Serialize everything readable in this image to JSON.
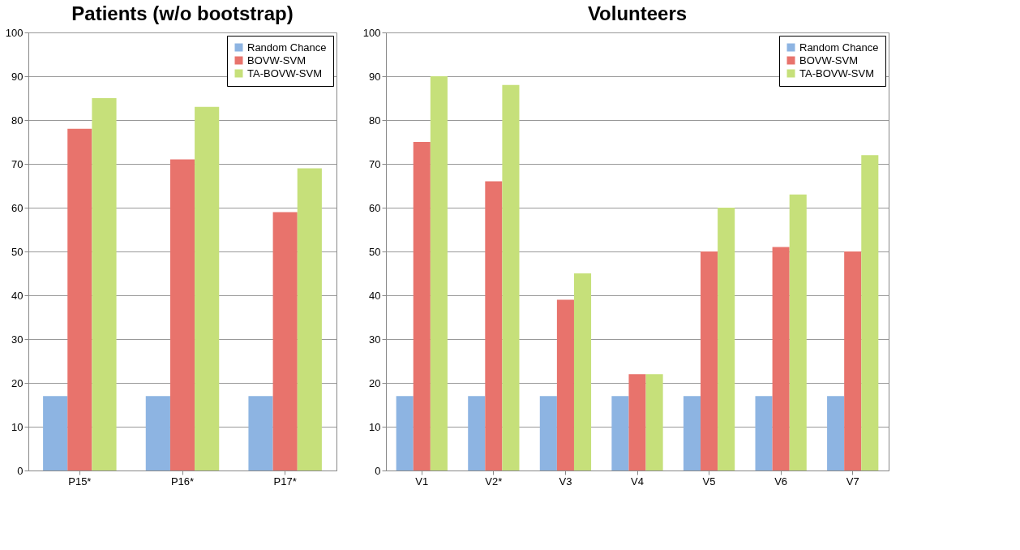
{
  "chart_data": [
    {
      "type": "bar",
      "title": "Patients (w/o bootstrap)",
      "categories": [
        "P15*",
        "P16*",
        "P17*"
      ],
      "ylim": [
        0,
        100
      ],
      "yticks": [
        0,
        10,
        20,
        30,
        40,
        50,
        60,
        70,
        80,
        90,
        100
      ],
      "grid": "y",
      "legend": "top right",
      "series": [
        {
          "name": "Random Chance",
          "color": "#8db4e2",
          "values": [
            17,
            17,
            17
          ]
        },
        {
          "name": "BOVW-SVM",
          "color": "#e8736c",
          "values": [
            78,
            71,
            59
          ]
        },
        {
          "name": "TA-BOVW-SVM",
          "color": "#c6e07a",
          "values": [
            85,
            83,
            69
          ]
        }
      ]
    },
    {
      "type": "bar",
      "title": "Volunteers",
      "categories": [
        "V1",
        "V2*",
        "V3",
        "V4",
        "V5",
        "V6",
        "V7"
      ],
      "ylim": [
        0,
        100
      ],
      "yticks": [
        0,
        10,
        20,
        30,
        40,
        50,
        60,
        70,
        80,
        90,
        100
      ],
      "grid": "y",
      "legend": "top right",
      "series": [
        {
          "name": "Random Chance",
          "color": "#8db4e2",
          "values": [
            17,
            17,
            17,
            17,
            17,
            17,
            17
          ]
        },
        {
          "name": "BOVW-SVM",
          "color": "#e8736c",
          "values": [
            75,
            66,
            39,
            22,
            50,
            51,
            50
          ]
        },
        {
          "name": "TA-BOVW-SVM",
          "color": "#c6e07a",
          "values": [
            90,
            88,
            45,
            22,
            60,
            63,
            72
          ]
        }
      ]
    }
  ]
}
